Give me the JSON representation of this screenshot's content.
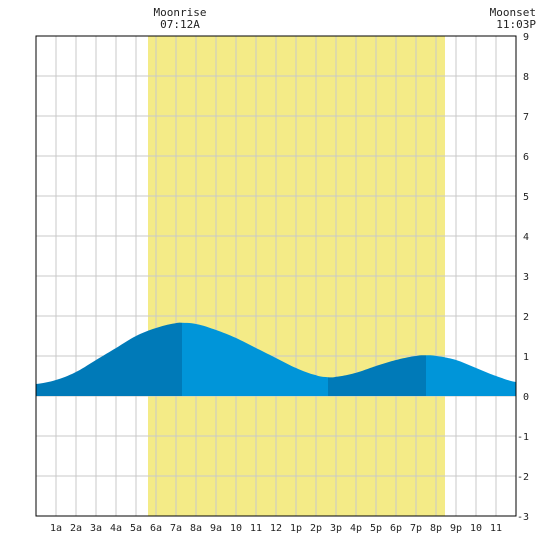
{
  "chart_data": {
    "type": "area",
    "title": "",
    "xlabel": "",
    "ylabel": "",
    "xlim": [
      0,
      24
    ],
    "ylim": [
      -3,
      9
    ],
    "grid": true,
    "x_tick_labels": [
      "1a",
      "2a",
      "3a",
      "4a",
      "5a",
      "6a",
      "7a",
      "8a",
      "9a",
      "10",
      "11",
      "12",
      "1p",
      "2p",
      "3p",
      "4p",
      "5p",
      "6p",
      "7p",
      "8p",
      "9p",
      "10",
      "11"
    ],
    "y_tick_labels": [
      "9",
      "8",
      "7",
      "6",
      "5",
      "4",
      "3",
      "2",
      "1",
      "0",
      "-1",
      "-2",
      "-3"
    ],
    "daylight_hours": [
      5.6,
      20.45
    ],
    "annotations": [
      {
        "label": "Moonrise",
        "time": "07:12A",
        "hour": 7.2
      },
      {
        "label": "Moonset",
        "time": "11:03P",
        "hour": 23.05
      }
    ],
    "series": [
      {
        "x": [
          0,
          1,
          2,
          3,
          4,
          5,
          6,
          7,
          7.3,
          8,
          9,
          10,
          11,
          12,
          13,
          14,
          14.6,
          15,
          16,
          17,
          18,
          19,
          19.5,
          20,
          21,
          22,
          23,
          24
        ],
        "y": [
          0.3,
          0.4,
          0.6,
          0.9,
          1.2,
          1.5,
          1.7,
          1.82,
          1.83,
          1.8,
          1.65,
          1.45,
          1.2,
          0.95,
          0.7,
          0.52,
          0.47,
          0.48,
          0.58,
          0.75,
          0.9,
          1.0,
          1.02,
          1.0,
          0.9,
          0.7,
          0.5,
          0.35
        ]
      }
    ],
    "segment_boundaries": [
      7.3,
      14.6,
      19.5
    ],
    "colors": {
      "daylight": "#f4eb87",
      "tide_dark": "#007ab8",
      "tide_light": "#0095d9",
      "grid": "#c8c8c8",
      "axis": "#000000"
    }
  }
}
